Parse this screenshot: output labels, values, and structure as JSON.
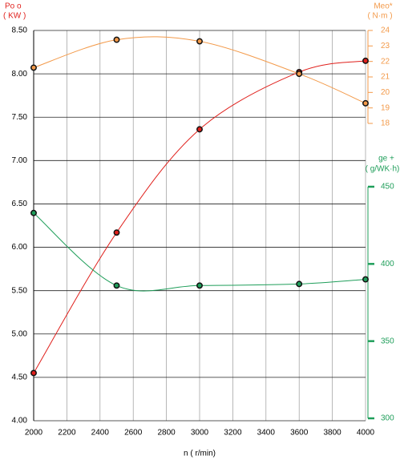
{
  "chart_data": {
    "type": "line",
    "xlabel": "n ( r/min)",
    "ylabel": "Po o",
    "yunit": "( KW )",
    "y2label": "Meo*",
    "y2unit": "( N·m )",
    "y3label": "ge +",
    "y3unit": "( g/WK·h)",
    "x": [
      2000,
      2500,
      3000,
      3600,
      4000
    ],
    "xlim": [
      2000,
      4000
    ],
    "xticks": [
      2000,
      2200,
      2400,
      2600,
      2800,
      3000,
      3200,
      3400,
      3600,
      3800,
      4000
    ],
    "ylim": [
      4,
      8.5
    ],
    "yticks": [
      {
        "value": 4,
        "label": "4.00"
      },
      {
        "value": 4.5,
        "label": "4.50"
      },
      {
        "value": 5,
        "label": "5.00"
      },
      {
        "value": 5.5,
        "label": "5.50"
      },
      {
        "value": 6,
        "label": "6.00"
      },
      {
        "value": 6.5,
        "label": "6.50"
      },
      {
        "value": 7,
        "label": "7.00"
      },
      {
        "value": 7.5,
        "label": "7.50"
      },
      {
        "value": 8,
        "label": "8.00"
      },
      {
        "value": 8.5,
        "label": "8.50"
      }
    ],
    "y2lim": [
      18,
      24
    ],
    "y2ticks": [
      18,
      19,
      20,
      21,
      22,
      23,
      24
    ],
    "y3lim": [
      300,
      450
    ],
    "y3ticks": [
      300,
      350,
      400,
      450
    ],
    "grid": true,
    "series": [
      {
        "color": "#e0201c",
        "axis": "y",
        "values": [
          4.55,
          6.17,
          7.36,
          8.02,
          8.15
        ]
      },
      {
        "color": "#f39a4a",
        "axis": "y2",
        "values": [
          21.6,
          23.4,
          23.3,
          21.2,
          19.3
        ]
      },
      {
        "color": "#1f9e5a",
        "axis": "y3",
        "values": [
          433,
          386,
          386,
          387,
          390
        ]
      }
    ]
  }
}
